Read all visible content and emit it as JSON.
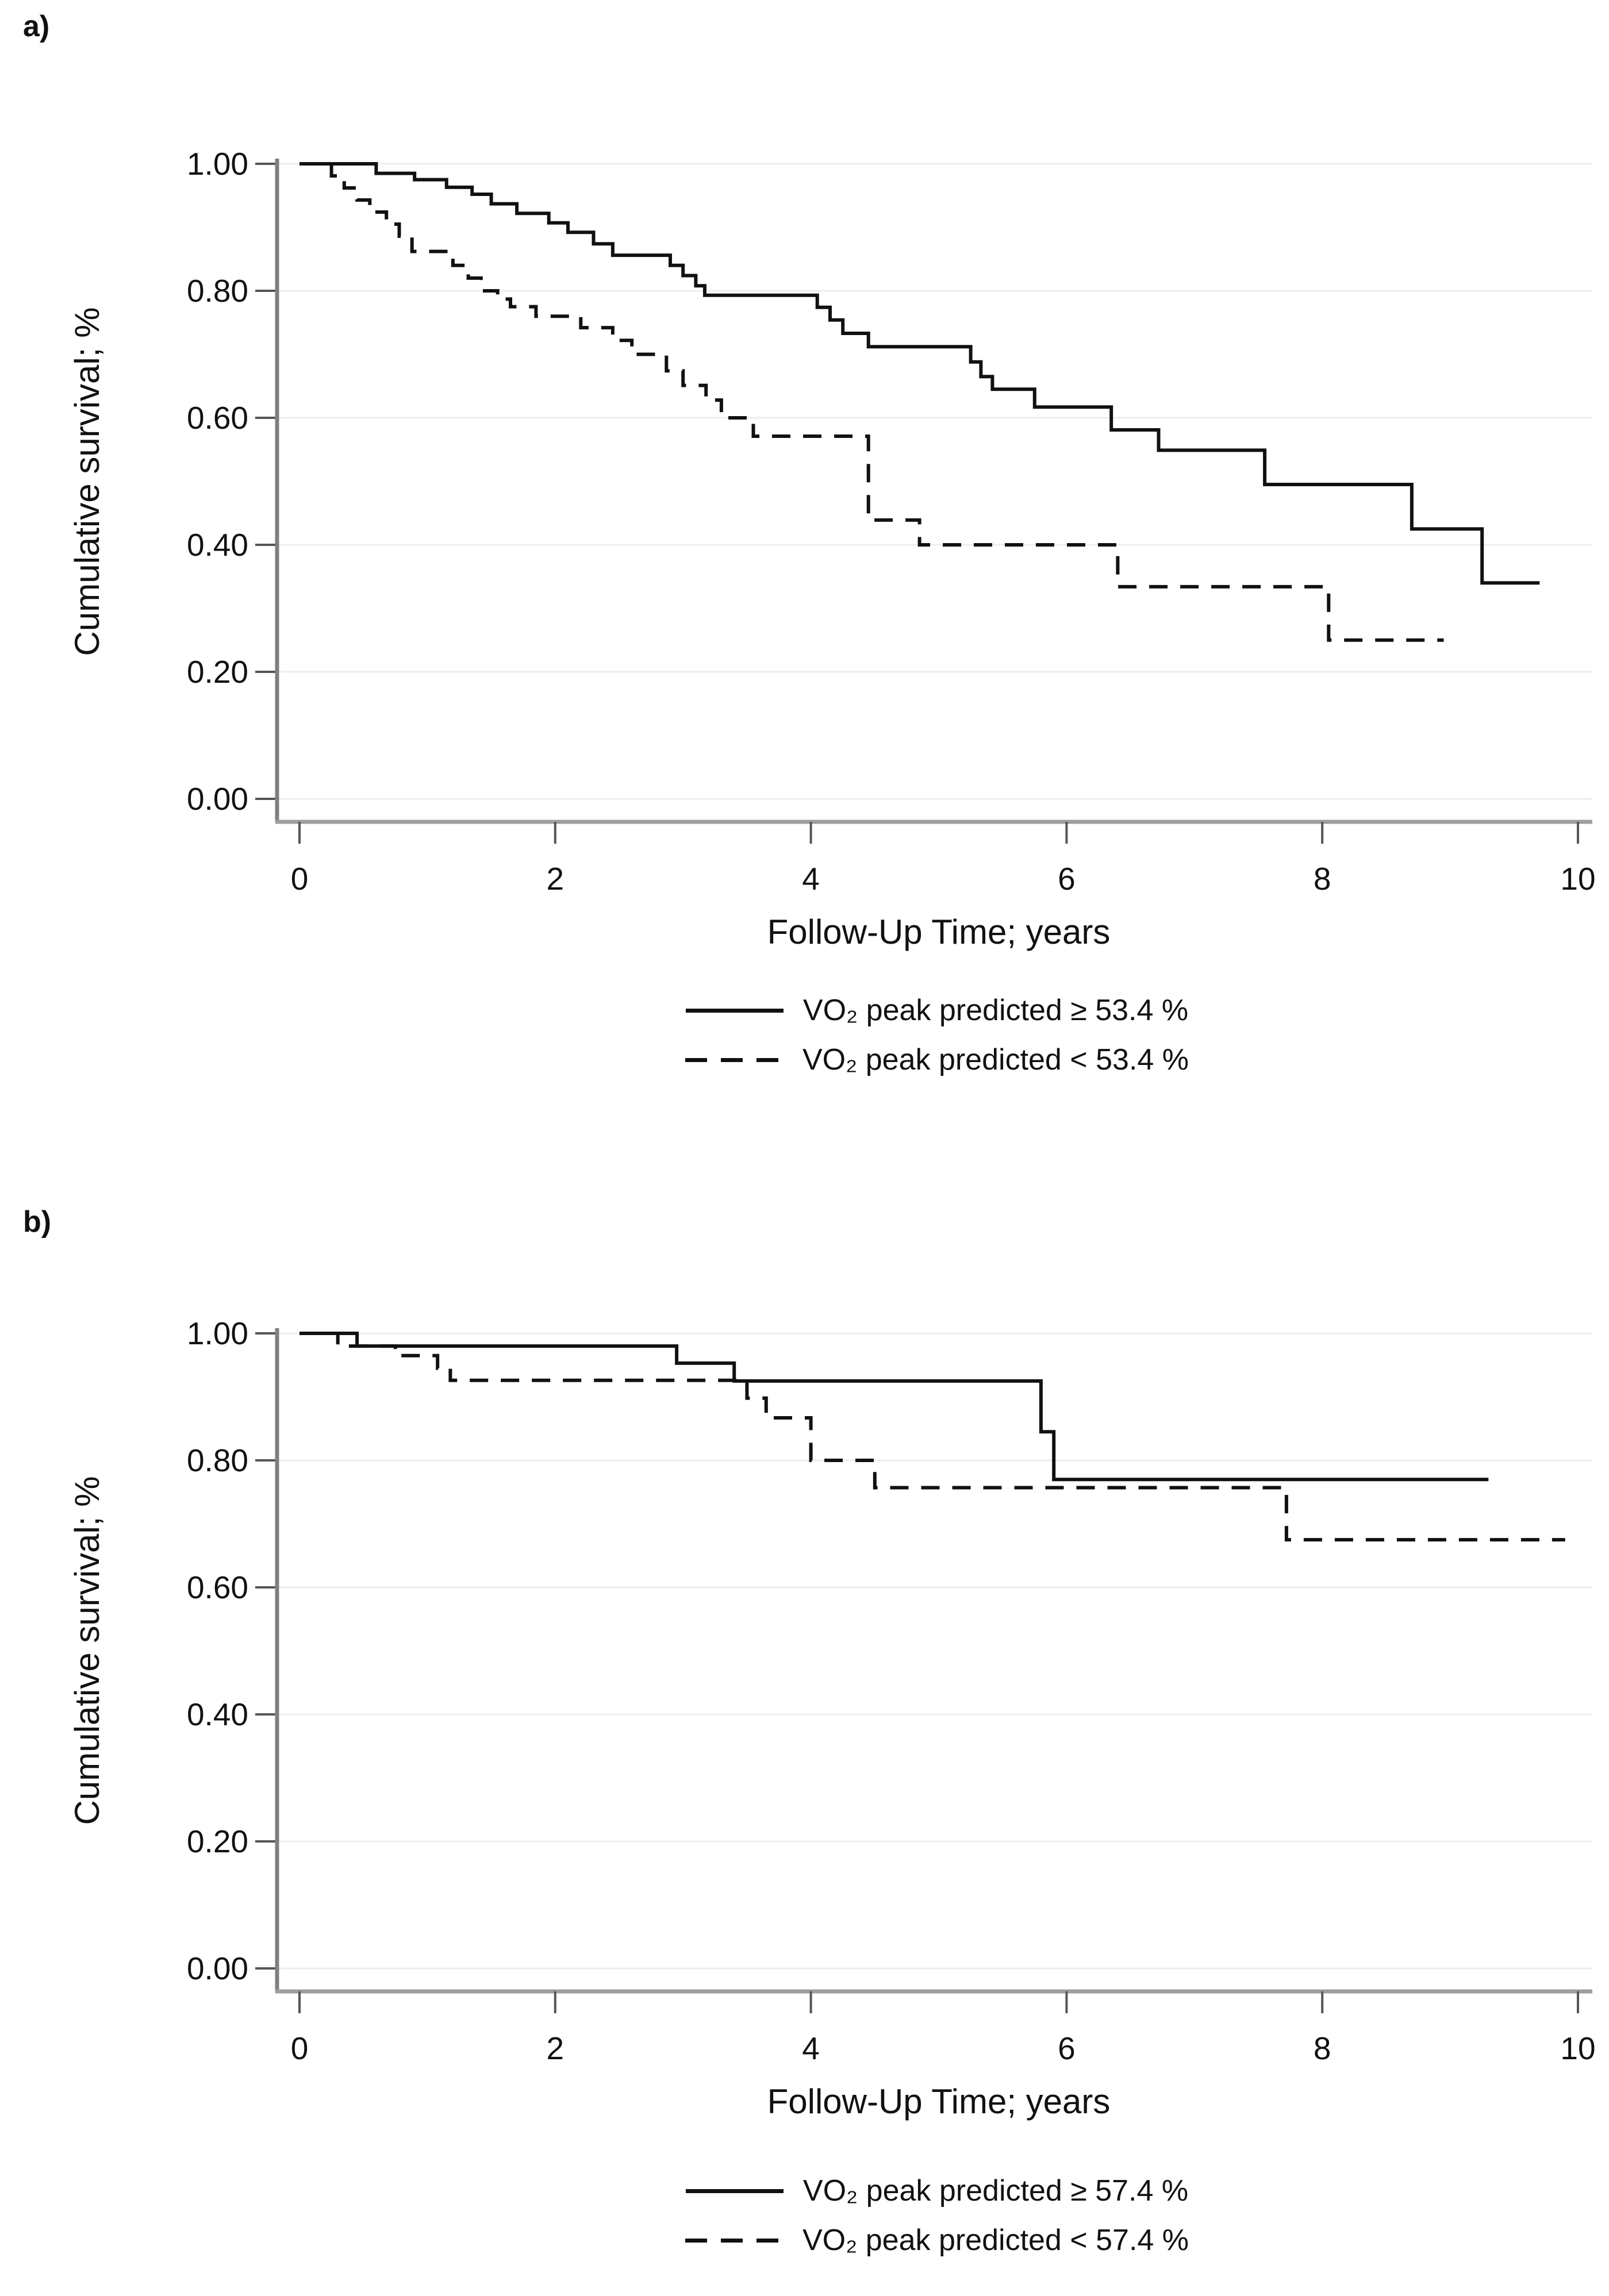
{
  "page": {
    "background": "#ffffff"
  },
  "colors": {
    "curve": "#111111",
    "gridline": "#ededed",
    "y_axis_line": "#808080",
    "x_axis_line": "#9e9e9e",
    "tick": "#555555",
    "text": "#111111"
  },
  "panels": [
    {
      "label": "a)",
      "legend": {
        "items": [
          {
            "style": "solid",
            "label": "VO₂ peak predicted ≥ 53.4 %"
          },
          {
            "style": "dashed",
            "label": "VO₂ peak predicted < 53.4 %"
          }
        ]
      }
    },
    {
      "label": "b)",
      "legend": {
        "items": [
          {
            "style": "solid",
            "label": "VO₂ peak predicted ≥ 57.4 %"
          },
          {
            "style": "dashed",
            "label": "VO₂ peak predicted < 57.4 %"
          }
        ]
      }
    }
  ],
  "chart_data": [
    {
      "type": "line",
      "subtype": "kaplan-meier-step",
      "title": "",
      "xlabel": "Follow-Up Time; years",
      "ylabel": "Cumulative survival; %",
      "xlim": [
        0,
        10.15
      ],
      "ylim": [
        0,
        1.0
      ],
      "grid": "horizontal",
      "legend_position": "below",
      "xticks": [
        {
          "label": "0",
          "value": 0
        },
        {
          "label": "2",
          "value": 2
        },
        {
          "label": "4",
          "value": 4
        },
        {
          "label": "6",
          "value": 6
        },
        {
          "label": "8",
          "value": 8
        },
        {
          "label": "10",
          "value": 10
        }
      ],
      "yticks": [
        {
          "label": "1.00",
          "value": 1.0
        },
        {
          "label": "0.80",
          "value": 0.8
        },
        {
          "label": "0.60",
          "value": 0.6
        },
        {
          "label": "0.40",
          "value": 0.4
        },
        {
          "label": "0.20",
          "value": 0.2
        },
        {
          "label": "0.00",
          "value": 0.0
        }
      ],
      "series": [
        {
          "name": "VO₂ peak predicted < 53.4 %",
          "style": "dashed",
          "end_x": 8.95,
          "points": [
            [
              0,
              1.0
            ],
            [
              0.25,
              0.981
            ],
            [
              0.35,
              0.962
            ],
            [
              0.45,
              0.943
            ],
            [
              0.55,
              0.924
            ],
            [
              0.68,
              0.905
            ],
            [
              0.78,
              0.886
            ],
            [
              0.88,
              0.862
            ],
            [
              1.2,
              0.84
            ],
            [
              1.32,
              0.82
            ],
            [
              1.42,
              0.8
            ],
            [
              1.55,
              0.787
            ],
            [
              1.65,
              0.775
            ],
            [
              1.85,
              0.76
            ],
            [
              2.2,
              0.742
            ],
            [
              2.45,
              0.722
            ],
            [
              2.6,
              0.7
            ],
            [
              2.87,
              0.674
            ],
            [
              3.0,
              0.651
            ],
            [
              3.18,
              0.628
            ],
            [
              3.3,
              0.6
            ],
            [
              3.55,
              0.571
            ],
            [
              4.45,
              0.439
            ],
            [
              4.85,
              0.4
            ],
            [
              6.4,
              0.334
            ],
            [
              8.05,
              0.25
            ]
          ]
        },
        {
          "name": "VO₂ peak predicted ≥ 53.4 %",
          "style": "solid",
          "end_x": 9.7,
          "points": [
            [
              0,
              1.0
            ],
            [
              0.6,
              0.985
            ],
            [
              0.9,
              0.975
            ],
            [
              1.15,
              0.963
            ],
            [
              1.35,
              0.952
            ],
            [
              1.5,
              0.937
            ],
            [
              1.7,
              0.922
            ],
            [
              1.95,
              0.907
            ],
            [
              2.1,
              0.892
            ],
            [
              2.3,
              0.874
            ],
            [
              2.45,
              0.856
            ],
            [
              2.9,
              0.84
            ],
            [
              3.0,
              0.824
            ],
            [
              3.1,
              0.808
            ],
            [
              3.17,
              0.793
            ],
            [
              4.05,
              0.774
            ],
            [
              4.15,
              0.754
            ],
            [
              4.25,
              0.733
            ],
            [
              4.45,
              0.712
            ],
            [
              5.25,
              0.688
            ],
            [
              5.33,
              0.665
            ],
            [
              5.42,
              0.645
            ],
            [
              5.75,
              0.617
            ],
            [
              6.35,
              0.581
            ],
            [
              6.72,
              0.549
            ],
            [
              7.55,
              0.495
            ],
            [
              8.7,
              0.425
            ],
            [
              9.25,
              0.34
            ]
          ]
        }
      ]
    },
    {
      "type": "line",
      "subtype": "kaplan-meier-step",
      "title": "",
      "xlabel": "Follow-Up Time; years",
      "ylabel": "Cumulative survival; %",
      "xlim": [
        0,
        10.15
      ],
      "ylim": [
        0,
        1.0
      ],
      "grid": "horizontal",
      "legend_position": "below",
      "xticks": [
        {
          "label": "0",
          "value": 0
        },
        {
          "label": "2",
          "value": 2
        },
        {
          "label": "4",
          "value": 4
        },
        {
          "label": "6",
          "value": 6
        },
        {
          "label": "8",
          "value": 8
        },
        {
          "label": "10",
          "value": 10
        }
      ],
      "yticks": [
        {
          "label": "1.00",
          "value": 1.0
        },
        {
          "label": "0.80",
          "value": 0.8
        },
        {
          "label": "0.60",
          "value": 0.6
        },
        {
          "label": "0.40",
          "value": 0.4
        },
        {
          "label": "0.20",
          "value": 0.2
        },
        {
          "label": "0.00",
          "value": 0.0
        }
      ],
      "series": [
        {
          "name": "VO₂ peak predicted < 57.4 %",
          "style": "dashed",
          "end_x": 9.9,
          "points": [
            [
              0,
              1.0
            ],
            [
              0.3,
              0.98
            ],
            [
              0.75,
              0.965
            ],
            [
              1.08,
              0.945
            ],
            [
              1.18,
              0.926
            ],
            [
              3.5,
              0.898
            ],
            [
              3.65,
              0.867
            ],
            [
              4.0,
              0.8
            ],
            [
              4.5,
              0.757
            ],
            [
              7.72,
              0.675
            ]
          ]
        },
        {
          "name": "VO₂ peak predicted ≥ 57.4 %",
          "style": "solid",
          "end_x": 9.3,
          "points": [
            [
              0,
              1.0
            ],
            [
              0.45,
              0.98
            ],
            [
              2.95,
              0.953
            ],
            [
              3.4,
              0.925
            ],
            [
              5.8,
              0.845
            ],
            [
              5.9,
              0.77
            ]
          ]
        }
      ]
    }
  ]
}
